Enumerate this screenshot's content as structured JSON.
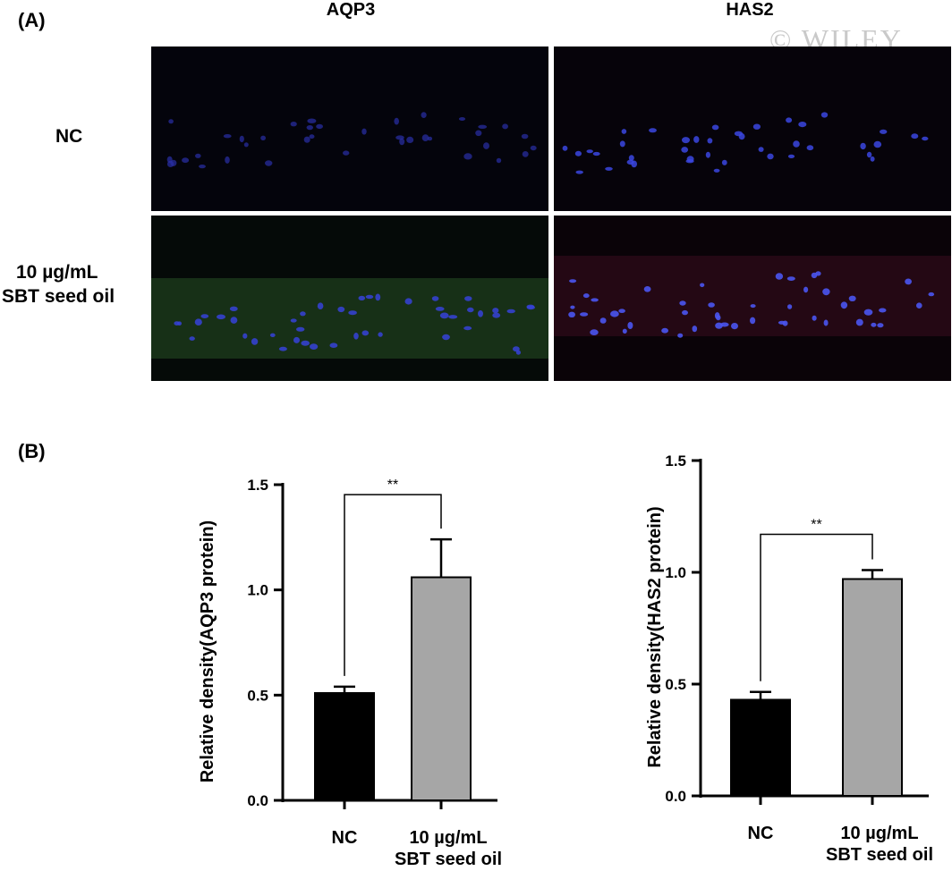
{
  "panel_a": {
    "label": "(A)",
    "columns": [
      "AQP3",
      "HAS2"
    ],
    "rows": [
      "NC",
      "10 µg/mL",
      "SBT seed oil"
    ],
    "watermark": "© WILEY",
    "images": [
      {
        "row": 0,
        "col": 0,
        "stain": "dim-blue-nuclei"
      },
      {
        "row": 0,
        "col": 1,
        "stain": "blue-nuclei"
      },
      {
        "row": 1,
        "col": 0,
        "stain": "blue-nuclei-green-band"
      },
      {
        "row": 1,
        "col": 1,
        "stain": "blue-nuclei-red-tint"
      }
    ]
  },
  "panel_b": {
    "label": "(B)"
  },
  "chart_data": [
    {
      "type": "bar",
      "ylabel": "Relative density(AQP3 protein)",
      "categories": [
        "NC",
        "10 µg/mL\nSBT seed oil"
      ],
      "values": [
        0.51,
        1.06
      ],
      "errors": [
        0.03,
        0.18
      ],
      "colors": [
        "#000000",
        "#a6a6a6"
      ],
      "ylim": [
        0,
        1.5
      ],
      "yticks": [
        "0.0",
        "0.5",
        "1.0",
        "1.5"
      ],
      "significance": "**"
    },
    {
      "type": "bar",
      "ylabel": "Relative density(HAS2 protein)",
      "categories": [
        "NC",
        "10 µg/mL\nSBT seed oil"
      ],
      "values": [
        0.43,
        0.97
      ],
      "errors": [
        0.035,
        0.04
      ],
      "colors": [
        "#000000",
        "#a6a6a6"
      ],
      "ylim": [
        0,
        1.5
      ],
      "yticks": [
        "0.0",
        "0.5",
        "1.0",
        "1.5"
      ],
      "significance": "**"
    }
  ]
}
